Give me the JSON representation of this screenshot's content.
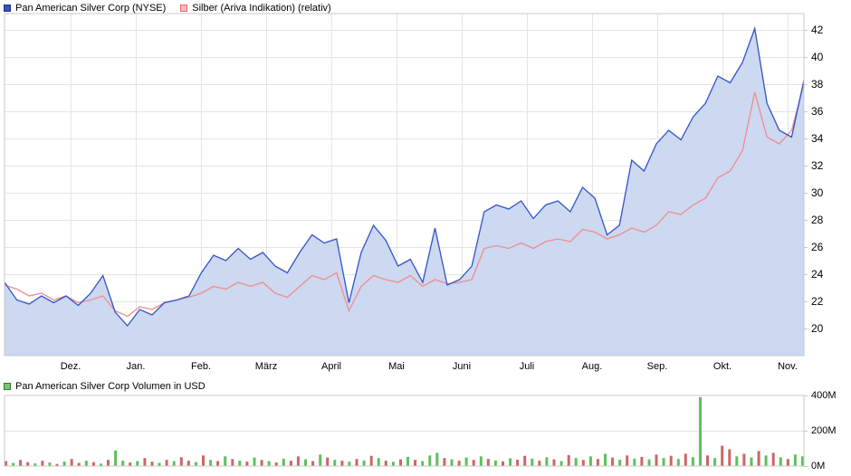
{
  "legend": {
    "swatches": {
      "price": {
        "fill": "#3254c5",
        "border": "#1a2f80"
      },
      "silver": {
        "fill": "#f6bcbc",
        "border": "#e06a6a"
      },
      "volume": {
        "fill": "#74c774",
        "border": "#2f7a2f"
      }
    }
  },
  "colors": {
    "grid": "#e4e4e4",
    "border": "#c8c8c8",
    "background": "#ffffff"
  },
  "chart_data": [
    {
      "type": "area",
      "title": "Pan American Silver Corp (NYSE) vs Silber (Ariva Indikation) (relativ)",
      "x_tick_labels": [
        "Dez.",
        "Jan.",
        "Feb.",
        "März",
        "April",
        "Mai",
        "Juni",
        "Juli",
        "Aug.",
        "Sep.",
        "Okt.",
        "Nov."
      ],
      "y_tick_labels": [
        20,
        22,
        24,
        26,
        28,
        30,
        32,
        34,
        36,
        38,
        40,
        42
      ],
      "ylim": [
        18,
        43.2
      ],
      "grid": true,
      "legend_position": "top-left",
      "series": [
        {
          "name": "Pan American Silver Corp (NYSE)",
          "type": "area",
          "color": "#2f54c8",
          "fill": "#cdd8f1",
          "values": [
            23.4,
            22.1,
            21.8,
            22.4,
            21.9,
            22.4,
            21.7,
            22.6,
            23.9,
            21.2,
            20.2,
            21.4,
            21.0,
            21.9,
            22.1,
            22.4,
            24.1,
            25.4,
            25.0,
            25.9,
            25.1,
            25.6,
            24.6,
            24.1,
            25.6,
            26.9,
            26.3,
            26.6,
            21.9,
            25.6,
            27.6,
            26.5,
            24.6,
            25.1,
            23.4,
            27.4,
            23.2,
            23.6,
            24.6,
            28.6,
            29.1,
            28.8,
            29.4,
            28.1,
            29.1,
            29.4,
            28.6,
            30.4,
            29.6,
            26.9,
            27.6,
            32.4,
            31.6,
            33.6,
            34.6,
            33.9,
            35.6,
            36.6,
            38.6,
            38.1,
            39.6,
            42.1,
            36.6,
            34.6,
            34.1,
            38.3
          ]
        },
        {
          "name": "Silber (Ariva Indikation) (relativ)",
          "type": "line",
          "color": "#f08d8d",
          "values": [
            23.2,
            22.9,
            22.4,
            22.6,
            22.1,
            22.4,
            21.9,
            22.1,
            22.4,
            21.3,
            20.9,
            21.6,
            21.4,
            21.9,
            22.1,
            22.3,
            22.6,
            23.1,
            22.9,
            23.4,
            23.1,
            23.4,
            22.6,
            22.3,
            23.1,
            23.9,
            23.6,
            24.1,
            21.3,
            23.1,
            23.9,
            23.6,
            23.4,
            23.9,
            23.1,
            23.6,
            23.3,
            23.4,
            23.6,
            25.9,
            26.1,
            25.9,
            26.3,
            25.9,
            26.4,
            26.6,
            26.4,
            27.3,
            27.1,
            26.6,
            26.9,
            27.4,
            27.1,
            27.6,
            28.6,
            28.4,
            29.1,
            29.6,
            31.1,
            31.6,
            33.1,
            37.4,
            34.1,
            33.6,
            34.6,
            38.0
          ]
        }
      ]
    },
    {
      "type": "bar",
      "title": "Pan American Silver Corp Volumen in USD",
      "y_tick_labels": [
        "0M",
        "200M",
        "400M"
      ],
      "ylim": [
        0,
        420
      ],
      "unit": "USD",
      "up_color": "#5fbf5f",
      "down_color": "#cc6666",
      "bars": [
        [
          28,
          "r"
        ],
        [
          18,
          "g"
        ],
        [
          35,
          "r"
        ],
        [
          22,
          "r"
        ],
        [
          15,
          "g"
        ],
        [
          30,
          "r"
        ],
        [
          20,
          "g"
        ],
        [
          12,
          "r"
        ],
        [
          25,
          "g"
        ],
        [
          40,
          "r"
        ],
        [
          18,
          "r"
        ],
        [
          30,
          "g"
        ],
        [
          22,
          "r"
        ],
        [
          14,
          "g"
        ],
        [
          35,
          "r"
        ],
        [
          88,
          "g"
        ],
        [
          30,
          "g"
        ],
        [
          20,
          "r"
        ],
        [
          28,
          "g"
        ],
        [
          45,
          "r"
        ],
        [
          25,
          "r"
        ],
        [
          18,
          "g"
        ],
        [
          35,
          "r"
        ],
        [
          28,
          "g"
        ],
        [
          50,
          "r"
        ],
        [
          30,
          "r"
        ],
        [
          22,
          "g"
        ],
        [
          60,
          "r"
        ],
        [
          35,
          "g"
        ],
        [
          28,
          "r"
        ],
        [
          55,
          "g"
        ],
        [
          40,
          "r"
        ],
        [
          30,
          "g"
        ],
        [
          25,
          "r"
        ],
        [
          48,
          "g"
        ],
        [
          35,
          "r"
        ],
        [
          28,
          "g"
        ],
        [
          20,
          "r"
        ],
        [
          42,
          "g"
        ],
        [
          30,
          "r"
        ],
        [
          55,
          "r"
        ],
        [
          38,
          "g"
        ],
        [
          28,
          "r"
        ],
        [
          65,
          "g"
        ],
        [
          48,
          "r"
        ],
        [
          35,
          "g"
        ],
        [
          30,
          "r"
        ],
        [
          25,
          "g"
        ],
        [
          40,
          "r"
        ],
        [
          32,
          "g"
        ],
        [
          58,
          "r"
        ],
        [
          45,
          "g"
        ],
        [
          30,
          "r"
        ],
        [
          24,
          "g"
        ],
        [
          38,
          "r"
        ],
        [
          52,
          "g"
        ],
        [
          35,
          "r"
        ],
        [
          28,
          "g"
        ],
        [
          60,
          "g"
        ],
        [
          75,
          "g"
        ],
        [
          45,
          "r"
        ],
        [
          38,
          "g"
        ],
        [
          30,
          "r"
        ],
        [
          48,
          "g"
        ],
        [
          35,
          "r"
        ],
        [
          55,
          "g"
        ],
        [
          40,
          "r"
        ],
        [
          32,
          "g"
        ],
        [
          26,
          "r"
        ],
        [
          44,
          "g"
        ],
        [
          36,
          "r"
        ],
        [
          58,
          "r"
        ],
        [
          42,
          "g"
        ],
        [
          30,
          "r"
        ],
        [
          50,
          "g"
        ],
        [
          38,
          "r"
        ],
        [
          28,
          "g"
        ],
        [
          62,
          "r"
        ],
        [
          45,
          "g"
        ],
        [
          35,
          "r"
        ],
        [
          55,
          "g"
        ],
        [
          40,
          "r"
        ],
        [
          70,
          "g"
        ],
        [
          48,
          "r"
        ],
        [
          36,
          "g"
        ],
        [
          60,
          "r"
        ],
        [
          42,
          "g"
        ],
        [
          52,
          "r"
        ],
        [
          38,
          "g"
        ],
        [
          65,
          "r"
        ],
        [
          45,
          "g"
        ],
        [
          58,
          "r"
        ],
        [
          40,
          "g"
        ],
        [
          70,
          "r"
        ],
        [
          50,
          "g"
        ],
        [
          390,
          "g"
        ],
        [
          60,
          "r"
        ],
        [
          45,
          "g"
        ],
        [
          115,
          "r"
        ],
        [
          95,
          "r"
        ],
        [
          55,
          "g"
        ],
        [
          70,
          "r"
        ],
        [
          48,
          "g"
        ],
        [
          85,
          "r"
        ],
        [
          60,
          "g"
        ],
        [
          75,
          "r"
        ],
        [
          50,
          "g"
        ],
        [
          40,
          "r"
        ],
        [
          65,
          "g"
        ],
        [
          55,
          "g"
        ]
      ]
    }
  ]
}
